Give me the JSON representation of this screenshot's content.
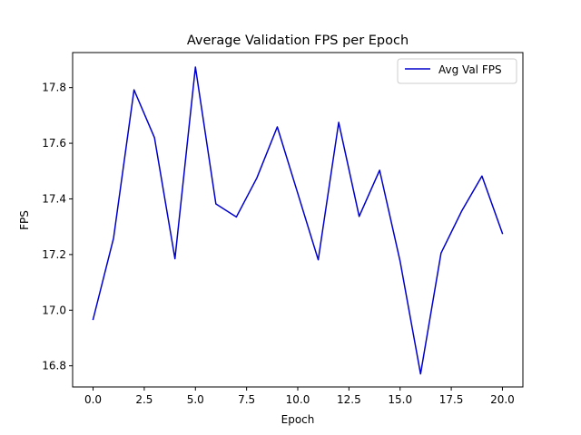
{
  "chart_data": {
    "type": "line",
    "title": "Average Validation FPS per Epoch",
    "xlabel": "Epoch",
    "ylabel": "FPS",
    "xlim": [
      -1,
      21
    ],
    "ylim": [
      16.724,
      17.926
    ],
    "xticks": [
      0,
      2.5,
      5,
      7.5,
      10,
      12.5,
      15,
      17.5,
      20
    ],
    "xtick_labels": [
      "0.0",
      "2.5",
      "5.0",
      "7.5",
      "10.0",
      "12.5",
      "15.0",
      "17.5",
      "20.0"
    ],
    "yticks": [
      16.8,
      17.0,
      17.2,
      17.4,
      17.6,
      17.8
    ],
    "ytick_labels": [
      "16.8",
      "17.0",
      "17.2",
      "17.4",
      "17.6",
      "17.8"
    ],
    "grid": false,
    "legend_position": "top-right",
    "series": [
      {
        "name": "Avg Val FPS",
        "color": "#0000cc",
        "x": [
          0,
          1,
          2,
          3,
          4,
          5,
          6,
          7,
          8,
          9,
          10,
          11,
          12,
          13,
          14,
          15,
          16,
          17,
          18,
          19,
          20
        ],
        "y": [
          16.967,
          17.259,
          17.792,
          17.62,
          17.185,
          17.874,
          17.382,
          17.335,
          17.475,
          17.659,
          17.42,
          17.181,
          17.675,
          17.337,
          17.503,
          17.176,
          16.771,
          17.205,
          17.355,
          17.482,
          17.276
        ]
      }
    ]
  }
}
